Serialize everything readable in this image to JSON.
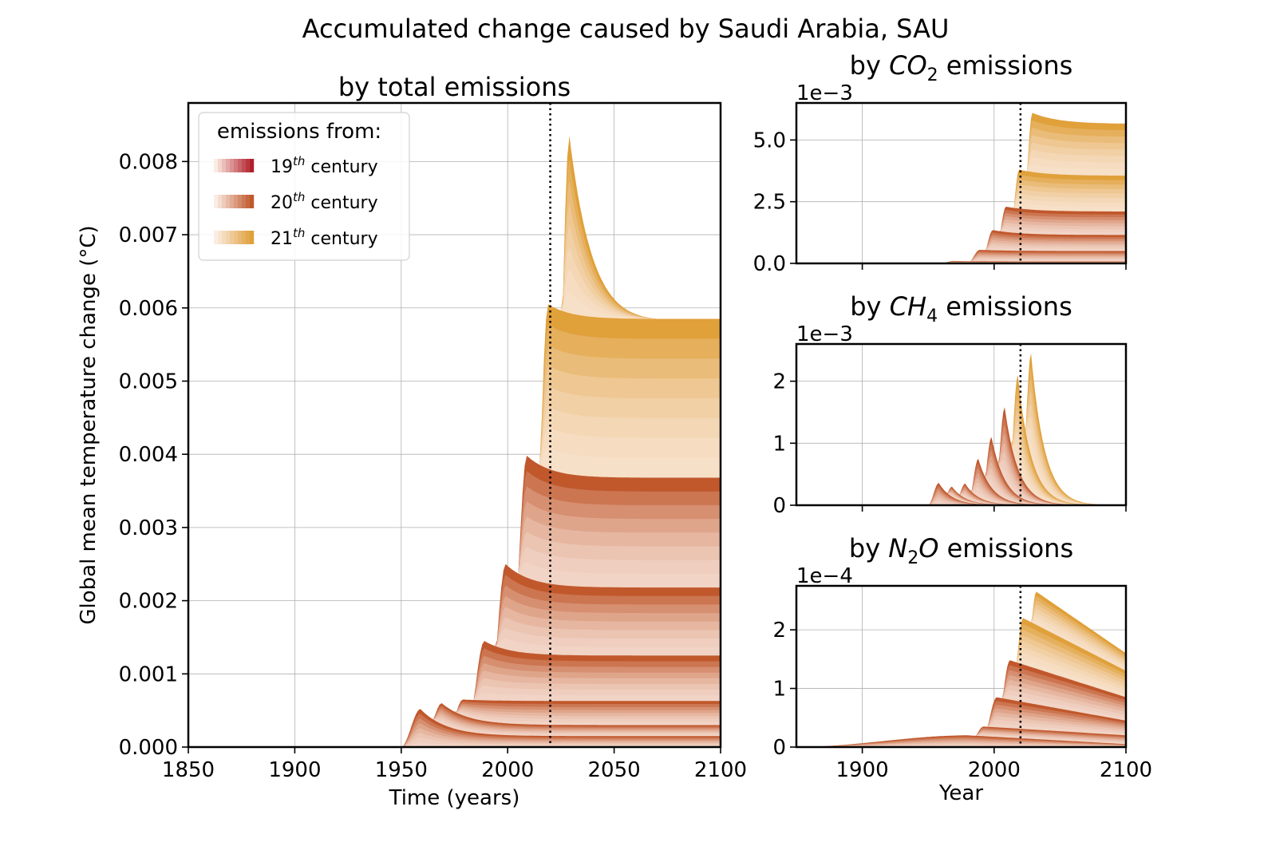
{
  "suptitle": "Accumulated change caused by Saudi Arabia, SAU",
  "colors": {
    "c19": "#b11f2b",
    "c20": "#c0582c",
    "c21": "#e0a03a",
    "light": "#fbece4"
  },
  "legend": {
    "title": "emissions from:",
    "entries": [
      {
        "base": "19",
        "sup": "th",
        "rest": " century",
        "color_key": "c19"
      },
      {
        "base": "20",
        "sup": "th",
        "rest": " century",
        "color_key": "c20"
      },
      {
        "base": "21",
        "sup": "th",
        "rest": " century",
        "color_key": "c21"
      }
    ]
  },
  "chart_data": [
    {
      "id": "main",
      "type": "area",
      "title": "by total emissions",
      "xlabel": "Time (years)",
      "ylabel": "Global mean temperature change (°C)",
      "xlim": [
        1850,
        2100
      ],
      "ylim": [
        0,
        0.0088
      ],
      "xticks": [
        1850,
        1900,
        1950,
        2000,
        2050,
        2100
      ],
      "xtick_labels": [
        "1850",
        "1900",
        "1950",
        "2000",
        "2050",
        "2100"
      ],
      "yticks": [
        0,
        0.001,
        0.002,
        0.003,
        0.004,
        0.005,
        0.006,
        0.007,
        0.008
      ],
      "ytick_labels": [
        "0.000",
        "0.001",
        "0.002",
        "0.003",
        "0.004",
        "0.005",
        "0.006",
        "0.007",
        "0.008"
      ],
      "vline": 2020,
      "grid": true,
      "legend_position": "upper left",
      "stack": "cumulative decade bands, 1950s to 2090s",
      "bands": [
        {
          "start": 1950,
          "peak": 0.00052,
          "end": 0.00015,
          "group": "c20"
        },
        {
          "start": 1960,
          "peak": 0.0006,
          "end": 0.0003,
          "group": "c20"
        },
        {
          "start": 1970,
          "peak": 0.00065,
          "end": 0.00063,
          "group": "c20"
        },
        {
          "start": 1980,
          "peak": 0.00145,
          "end": 0.00125,
          "group": "c20"
        },
        {
          "start": 1990,
          "peak": 0.0025,
          "end": 0.00218,
          "group": "c20"
        },
        {
          "start": 2000,
          "peak": 0.00398,
          "end": 0.00368,
          "group": "c20"
        },
        {
          "start": 2010,
          "peak": 0.00605,
          "end": 0.00585,
          "group": "c21"
        },
        {
          "start": 2020,
          "peak": 0.00835,
          "end": 0.00585,
          "group": "c21"
        }
      ]
    },
    {
      "id": "co2",
      "type": "area",
      "title_prefix": "by ",
      "species": "CO",
      "species_sub": "2",
      "title_suffix": " emissions",
      "offset_label": "1e−3",
      "ylim": [
        0,
        6.5
      ],
      "yticks": [
        0,
        2.5,
        5.0
      ],
      "ytick_labels": [
        "0.0",
        "2.5",
        "5.0"
      ],
      "xlim": [
        1850,
        2100
      ],
      "xticks": [
        1900,
        2000,
        2100
      ],
      "vline": 2020,
      "shape": "plateau",
      "bands": [
        {
          "start": 1960,
          "peak": 0.1,
          "end": 0.08,
          "group": "c20"
        },
        {
          "start": 1980,
          "peak": 0.55,
          "end": 0.5,
          "group": "c20"
        },
        {
          "start": 1990,
          "peak": 1.35,
          "end": 1.15,
          "group": "c20"
        },
        {
          "start": 2000,
          "peak": 2.3,
          "end": 2.1,
          "group": "c20"
        },
        {
          "start": 2010,
          "peak": 3.8,
          "end": 3.55,
          "group": "c21"
        },
        {
          "start": 2020,
          "peak": 6.1,
          "end": 5.65,
          "group": "c21"
        }
      ]
    },
    {
      "id": "ch4",
      "type": "area",
      "title_prefix": "by ",
      "species": "CH",
      "species_sub": "4",
      "title_suffix": " emissions",
      "offset_label": "1e−3",
      "ylim": [
        0,
        2.6
      ],
      "yticks": [
        0,
        1,
        2
      ],
      "ytick_labels": [
        "0",
        "1",
        "2"
      ],
      "xlim": [
        1850,
        2100
      ],
      "xticks": [
        1900,
        2000,
        2100
      ],
      "vline": 2020,
      "shape": "spike",
      "bands": [
        {
          "start": 1950,
          "peak": 0.36,
          "end": 0,
          "group": "c20"
        },
        {
          "start": 1960,
          "peak": 0.3,
          "end": 0,
          "group": "c20"
        },
        {
          "start": 1970,
          "peak": 0.35,
          "end": 0,
          "group": "c20"
        },
        {
          "start": 1980,
          "peak": 0.75,
          "end": 0,
          "group": "c20"
        },
        {
          "start": 1990,
          "peak": 1.1,
          "end": 0,
          "group": "c20"
        },
        {
          "start": 2000,
          "peak": 1.58,
          "end": 0,
          "group": "c20"
        },
        {
          "start": 2010,
          "peak": 2.1,
          "end": 0,
          "group": "c21"
        },
        {
          "start": 2020,
          "peak": 2.45,
          "end": 0,
          "group": "c21"
        }
      ]
    },
    {
      "id": "n2o",
      "type": "area",
      "title_prefix": "by ",
      "species": "N",
      "species_sub": "2",
      "species_tail": "O",
      "title_suffix": " emissions",
      "offset_label": "1e−4",
      "ylim": [
        0,
        2.75
      ],
      "yticks": [
        0,
        1,
        2
      ],
      "ytick_labels": [
        "0",
        "1",
        "2"
      ],
      "xlim": [
        1850,
        2100
      ],
      "xticks": [
        1900,
        2000,
        2100
      ],
      "xtick_labels": [
        "1900",
        "2000",
        "2100"
      ],
      "xlabel": "Year",
      "vline": 2020,
      "shape": "slow",
      "bands": [
        {
          "start": 1850,
          "peak": 0.2,
          "end": 0.05,
          "group": "c20"
        },
        {
          "start": 1980,
          "peak": 0.35,
          "end": 0.2,
          "group": "c20"
        },
        {
          "start": 1990,
          "peak": 0.85,
          "end": 0.45,
          "group": "c20"
        },
        {
          "start": 2000,
          "peak": 1.48,
          "end": 0.85,
          "group": "c20"
        },
        {
          "start": 2010,
          "peak": 2.2,
          "end": 1.3,
          "group": "c21"
        },
        {
          "start": 2020,
          "peak": 2.65,
          "end": 1.6,
          "group": "c21"
        }
      ]
    }
  ]
}
